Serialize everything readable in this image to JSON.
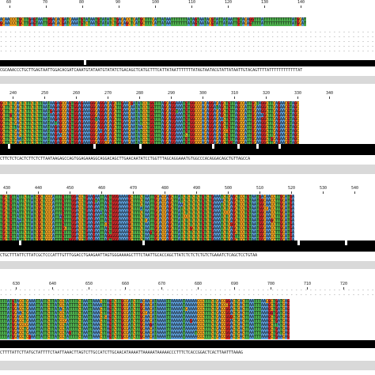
{
  "alignment": {
    "colors": {
      "A": "#5b9bd5",
      "C": "#f0a020",
      "G": "#d42a2a",
      "T": "#4cae4c",
      "gap": "#ffffff"
    },
    "panels": [
      {
        "ruler": [
          "60",
          "70",
          "80",
          "90",
          "100",
          "110",
          "120",
          "130",
          "140"
        ],
        "consensus": "CGCAAACCCTGCTTGAGTAATTGGACACGATCAAATGTATAATGTATATCTGACAGCTCATGCTTTCATTATAATTTTTTTATAGTAATACGTATTATAATTGTACAGTTTTATTTTTTTTTTTTAT",
        "sequence": "GCAACCCTGCTTGAGTAATTGGACACGATCAAATGTATAATGTATATCTGACAGCTCATGCTTTCATTATAATTTTTTTATAGTAATACGTATTATAATTGTACAGTTTTATTTTTTTTTTTTATGCAT",
        "rows": 2,
        "dotted_rows": 5
      },
      {
        "ruler": [
          "240",
          "250",
          "260",
          "270",
          "280",
          "290",
          "300",
          "310",
          "320",
          "330",
          "340"
        ],
        "consensus": "CTTCTCTCACTCTTCTCTTAATAAGAGCCAGTGGAGAAAGGCAGGACAGCTTGAACAATATCCTGGTTTAGCAGGAAATGTGGCCCACAGGACAGCTGTTAGCCA",
        "sequence": "GCTTCTCACTCTTCTCTTAATAAGAGCCAGTGGAGAAAGGCAGGACAGCTTGAACAATATCCTGGTTTAGCAGGAAATGTGGCCCACAGGACAGCTGTTAGCCATTGCAAGGCTTCAGAACGTAGC",
        "rows": 11,
        "dotted_rows": 0
      },
      {
        "ruler": [
          "430",
          "440",
          "450",
          "460",
          "470",
          "480",
          "490",
          "500",
          "510",
          "520",
          "530",
          "540"
        ],
        "consensus": "CTGCTTTATTCTTATCGCTCCCATTTGTTTGGACCTGAAGAATTAGTGGGAAAAGCTTTCTAATTGCACCAGCTTATCTCTCTCTGTCTGAAATCTCAGCTCCTGTAA",
        "sequence": "TGCTGTTATTCTTATCGCTCCCATTTGTTTGGACCTGAAGAATTAGTGGGAAAAGCTTTCTAATTGCACCAGCTTATCTCTCTCTGTCTGAAATCTCAGCTCCTGTAATGGCAACCTTGCATGA",
        "rows": 12,
        "dotted_rows": 0
      },
      {
        "ruler": [
          "630",
          "640",
          "650",
          "660",
          "670",
          "680",
          "690",
          "700",
          "710",
          "720"
        ],
        "consensus": "CTTTTATTCTTATGCTATTTTCTAATTAAACTTAGTCTTGCCATCTTGCAACATAAAATTAAAAATAAAAACCCTTTCTCACCGGACTCACTTAATTTAAAG",
        "sequence": "TTTATGCACCTCAAATTATTCTTATCCTATTTTCTAATTAAACTTAGTCTTGCCATCTTGCAACATAAAATTAAAAATAAAAACCCTTTCTCACCGGACTCACTTAATTTAAAGCTGATCAG",
        "rows": 10,
        "dotted_rows": 2
      }
    ]
  }
}
